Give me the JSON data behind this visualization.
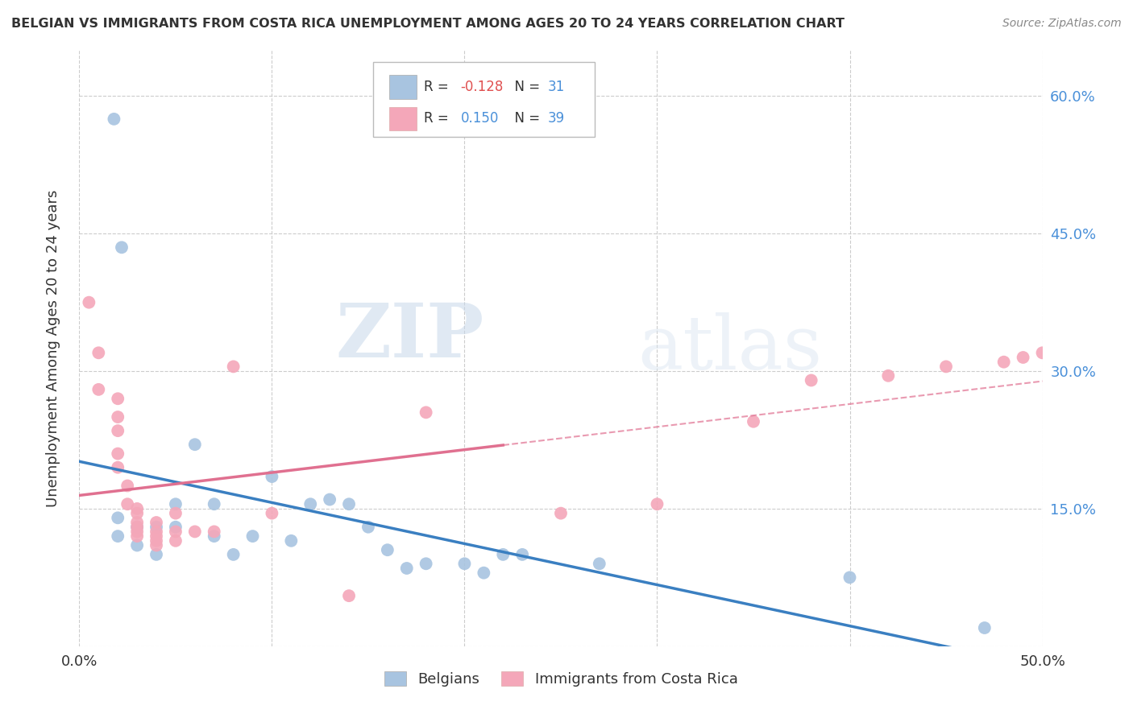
{
  "title": "BELGIAN VS IMMIGRANTS FROM COSTA RICA UNEMPLOYMENT AMONG AGES 20 TO 24 YEARS CORRELATION CHART",
  "source": "Source: ZipAtlas.com",
  "ylabel": "Unemployment Among Ages 20 to 24 years",
  "xlim": [
    0.0,
    0.5
  ],
  "ylim": [
    0.0,
    0.65
  ],
  "yticks": [
    0.0,
    0.15,
    0.3,
    0.45,
    0.6
  ],
  "ytick_labels": [
    "",
    "15.0%",
    "30.0%",
    "45.0%",
    "60.0%"
  ],
  "watermark_zip": "ZIP",
  "watermark_atlas": "atlas",
  "legend_belgian_r": "-0.128",
  "legend_belgian_n": "31",
  "legend_cr_r": "0.150",
  "legend_cr_n": "39",
  "belgian_color": "#a8c4e0",
  "cr_color": "#f4a7b9",
  "belgian_line_color": "#3a7fc1",
  "cr_line_color": "#e07090",
  "blue_text_color": "#4a90d9",
  "red_text_color": "#e05050",
  "belgian_scatter": [
    [
      0.018,
      0.575
    ],
    [
      0.022,
      0.435
    ],
    [
      0.02,
      0.14
    ],
    [
      0.02,
      0.12
    ],
    [
      0.03,
      0.13
    ],
    [
      0.03,
      0.11
    ],
    [
      0.04,
      0.13
    ],
    [
      0.04,
      0.1
    ],
    [
      0.05,
      0.155
    ],
    [
      0.05,
      0.13
    ],
    [
      0.06,
      0.22
    ],
    [
      0.07,
      0.155
    ],
    [
      0.07,
      0.12
    ],
    [
      0.08,
      0.1
    ],
    [
      0.09,
      0.12
    ],
    [
      0.1,
      0.185
    ],
    [
      0.11,
      0.115
    ],
    [
      0.12,
      0.155
    ],
    [
      0.13,
      0.16
    ],
    [
      0.14,
      0.155
    ],
    [
      0.15,
      0.13
    ],
    [
      0.16,
      0.105
    ],
    [
      0.17,
      0.085
    ],
    [
      0.18,
      0.09
    ],
    [
      0.2,
      0.09
    ],
    [
      0.21,
      0.08
    ],
    [
      0.22,
      0.1
    ],
    [
      0.23,
      0.1
    ],
    [
      0.27,
      0.09
    ],
    [
      0.4,
      0.075
    ],
    [
      0.47,
      0.02
    ]
  ],
  "cr_scatter": [
    [
      0.005,
      0.375
    ],
    [
      0.01,
      0.32
    ],
    [
      0.01,
      0.28
    ],
    [
      0.02,
      0.27
    ],
    [
      0.02,
      0.25
    ],
    [
      0.02,
      0.235
    ],
    [
      0.02,
      0.21
    ],
    [
      0.02,
      0.195
    ],
    [
      0.025,
      0.175
    ],
    [
      0.025,
      0.155
    ],
    [
      0.03,
      0.15
    ],
    [
      0.03,
      0.145
    ],
    [
      0.03,
      0.135
    ],
    [
      0.03,
      0.13
    ],
    [
      0.03,
      0.125
    ],
    [
      0.03,
      0.12
    ],
    [
      0.04,
      0.135
    ],
    [
      0.04,
      0.125
    ],
    [
      0.04,
      0.12
    ],
    [
      0.04,
      0.115
    ],
    [
      0.04,
      0.11
    ],
    [
      0.05,
      0.145
    ],
    [
      0.05,
      0.125
    ],
    [
      0.05,
      0.115
    ],
    [
      0.06,
      0.125
    ],
    [
      0.07,
      0.125
    ],
    [
      0.08,
      0.305
    ],
    [
      0.1,
      0.145
    ],
    [
      0.14,
      0.055
    ],
    [
      0.18,
      0.255
    ],
    [
      0.25,
      0.145
    ],
    [
      0.3,
      0.155
    ],
    [
      0.35,
      0.245
    ],
    [
      0.38,
      0.29
    ],
    [
      0.42,
      0.295
    ],
    [
      0.45,
      0.305
    ],
    [
      0.48,
      0.31
    ],
    [
      0.49,
      0.315
    ],
    [
      0.5,
      0.32
    ]
  ]
}
